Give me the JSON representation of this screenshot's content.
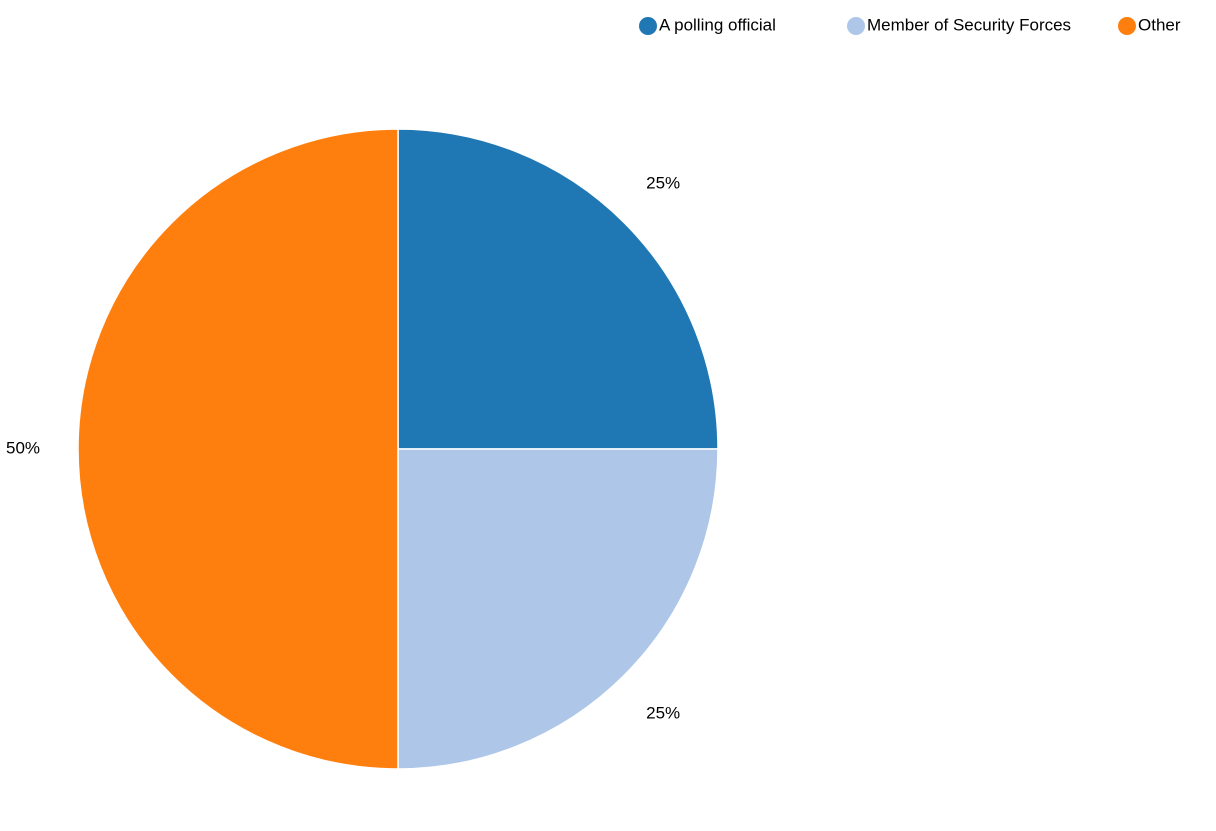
{
  "chart_data": {
    "type": "pie",
    "categories": [
      "A polling official",
      "Member of Security Forces",
      "Other"
    ],
    "values": [
      25,
      25,
      50
    ],
    "value_labels": [
      "25%",
      "25%",
      "50%"
    ],
    "colors": [
      "#1f77b4",
      "#aec7e8",
      "#ff7f0e"
    ],
    "legend": "top-right"
  }
}
